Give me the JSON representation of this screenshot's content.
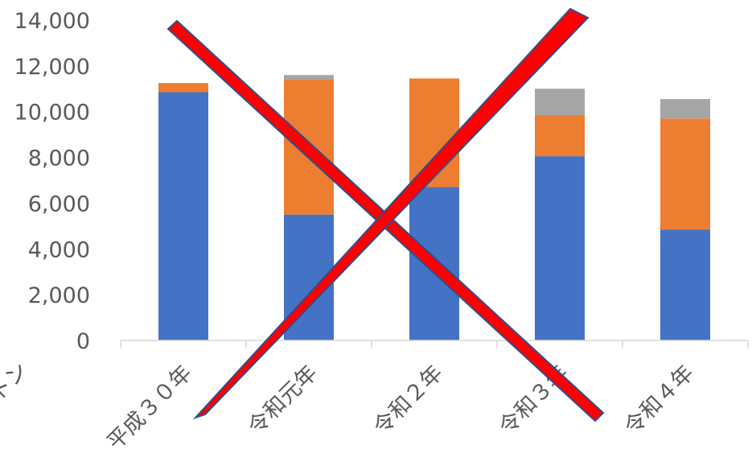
{
  "chart_data": {
    "type": "bar",
    "stacked": true,
    "categories": [
      "平成３０年",
      "令和元年",
      "令和２年",
      "令和３年",
      "令和４年"
    ],
    "series": [
      {
        "values": [
          10850,
          5500,
          6700,
          8050,
          4850
        ],
        "color": "#4472C4"
      },
      {
        "values": [
          400,
          5900,
          4750,
          1800,
          4850
        ],
        "color": "#ED7D31"
      },
      {
        "values": [
          0,
          200,
          0,
          1150,
          850
        ],
        "color": "#A5A5A5"
      }
    ],
    "ylim": [
      0,
      14000
    ],
    "yticks": [
      0,
      2000,
      4000,
      6000,
      8000,
      10000,
      12000,
      14000
    ],
    "ytick_labels": [
      "0",
      "2,000",
      "4,000",
      "6,000",
      "8,000",
      "10,000",
      "12,000",
      "14,000"
    ],
    "unit_label_fragment": "トン",
    "grid": false,
    "overlay": {
      "type": "cross-out",
      "color": "#FF0000",
      "stroke": "#2F4F8F"
    }
  }
}
